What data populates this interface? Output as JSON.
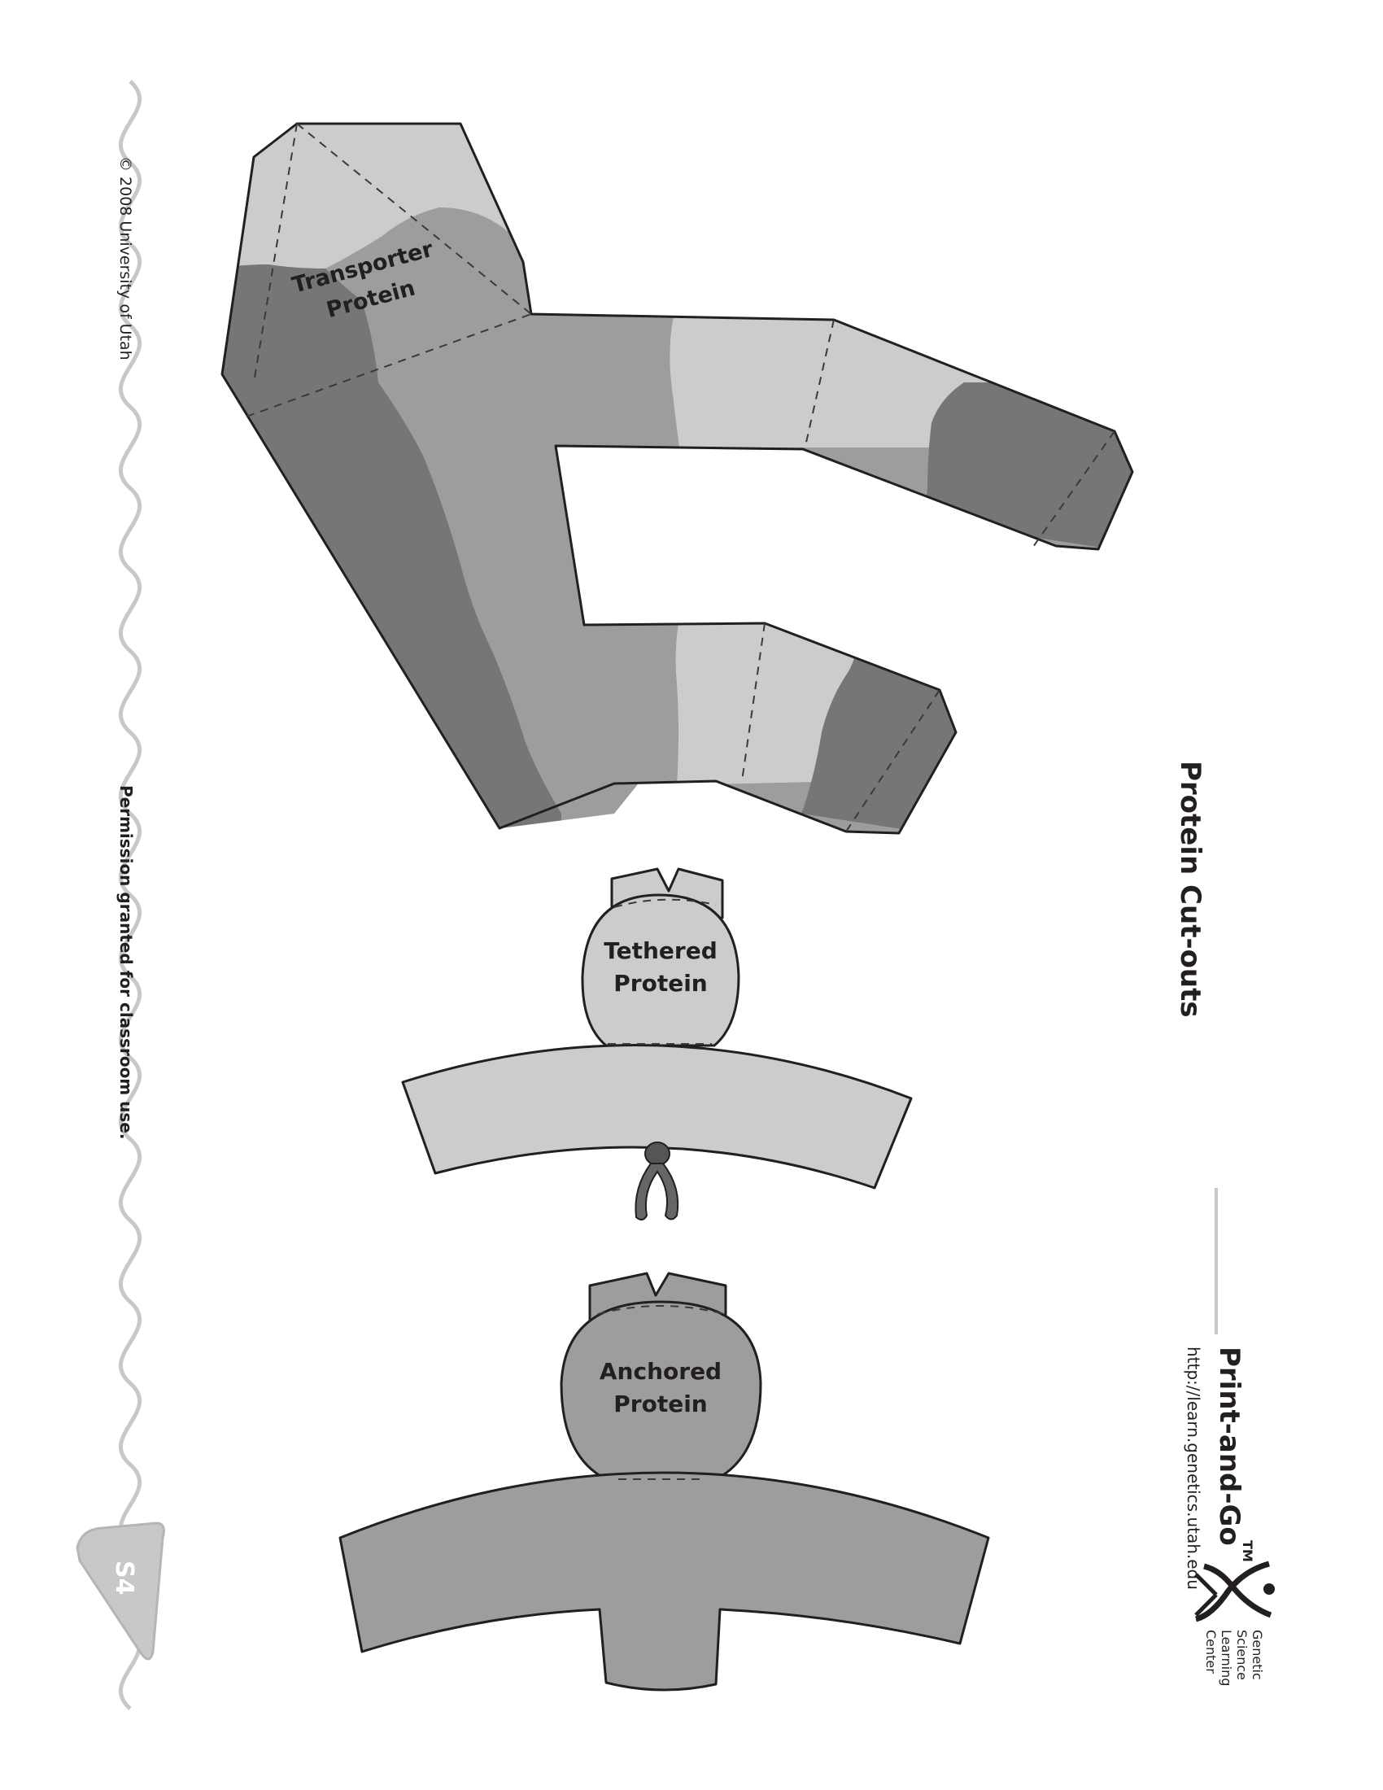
{
  "page": {
    "title": "Protein Cut-outs",
    "copyright": "© 2008 University of Utah",
    "permission": "Permission granted for classroom use.",
    "page_number": "S4"
  },
  "cutouts": {
    "transporter": {
      "line1": "Transporter",
      "line2": "Protein"
    },
    "tethered": {
      "line1": "Tethered",
      "line2": "Protein"
    },
    "anchored": {
      "line1": "Anchored",
      "line2": "Protein"
    }
  },
  "branding": {
    "series_name": "Print-and-Go",
    "series_mark": "TM",
    "url": "http://learn.genetics.utah.edu",
    "org_line1": "Genetic",
    "org_line2": "Science",
    "org_line3": "Learning",
    "org_line4": "Center",
    "logo_icon": "dna-figure-icon"
  },
  "colors": {
    "light_gray": "#cbcccb",
    "mid_gray": "#9c9d9c",
    "dark_gray": "#757675",
    "side_rule": "#c8c8c8",
    "ink": "#231f20"
  }
}
